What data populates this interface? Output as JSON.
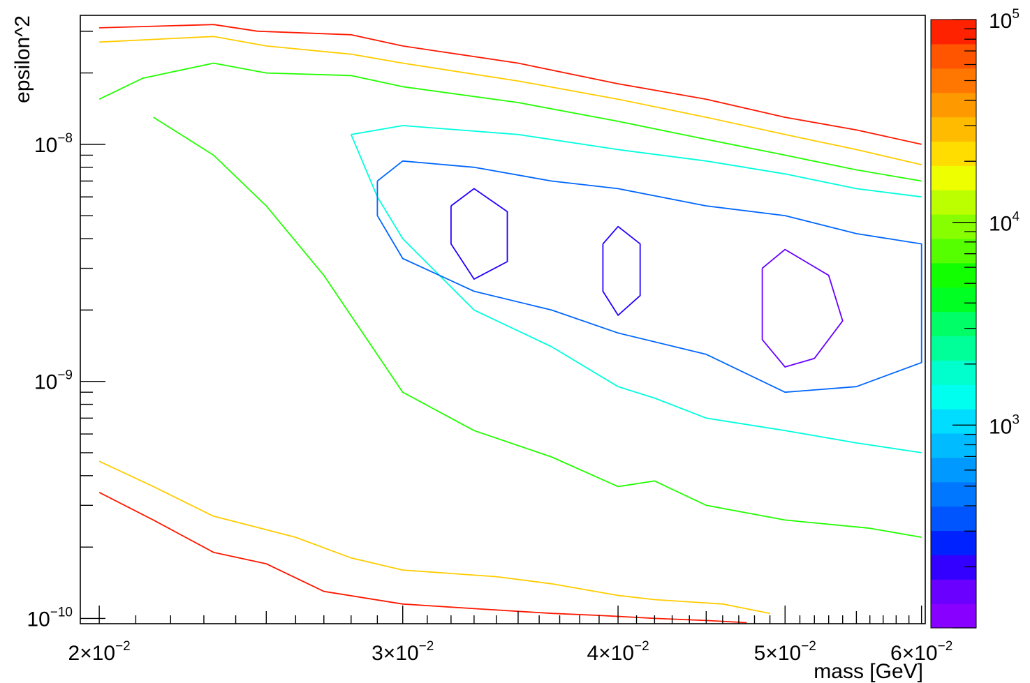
{
  "chart_data": {
    "type": "contour",
    "xlabel": "mass [GeV]",
    "ylabel": "epsilon^2",
    "xscale": "log",
    "yscale": "log",
    "xlim": [
      0.0195,
      0.0603
    ],
    "ylim": [
      9.5e-11,
      3.5e-08
    ],
    "x_ticks": [
      {
        "value": 0.02,
        "mant": "2",
        "exp": "−2"
      },
      {
        "value": 0.03,
        "mant": "3",
        "exp": "−2"
      },
      {
        "value": 0.04,
        "mant": "4",
        "exp": "−2"
      },
      {
        "value": 0.05,
        "mant": "5",
        "exp": "−2"
      },
      {
        "value": 0.06,
        "mant": "6",
        "exp": "−2"
      }
    ],
    "y_ticks": [
      {
        "value": 1e-10,
        "exp": "−10"
      },
      {
        "value": 1e-09,
        "exp": "−9"
      },
      {
        "value": 1e-08,
        "exp": "−8"
      }
    ],
    "colorbar": {
      "scale": "log",
      "range": [
        100,
        100000
      ],
      "ticks": [
        {
          "value": 1000,
          "exp": "3"
        },
        {
          "value": 10000,
          "exp": "4"
        },
        {
          "value": 100000,
          "exp": "5"
        }
      ],
      "colors": [
        "#8800ff",
        "#6a00ff",
        "#3300ff",
        "#0022ff",
        "#0055ff",
        "#0077ff",
        "#0099ff",
        "#00bbff",
        "#00ddff",
        "#00ffee",
        "#00ffcc",
        "#00ff99",
        "#00ff66",
        "#00ff22",
        "#11ff00",
        "#55ff00",
        "#88ff00",
        "#bbff00",
        "#eeff00",
        "#ffdd00",
        "#ffbb00",
        "#ff9900",
        "#ff7700",
        "#ff5500",
        "#ff2200"
      ]
    },
    "annotation": "Nested contour levels of a quantity over (mass, epsilon^2): red outer band near the upper and lower-left edges, falling through orange, yellow, green and cyan to blue/violet islands in the center-right region.",
    "contours": [
      {
        "level": 100000,
        "color": "#ff1800",
        "points": [
          [
            0.02,
            3.1e-08
          ],
          [
            0.0233,
            3.2e-08
          ],
          [
            0.0247,
            3e-08
          ],
          [
            0.028,
            2.9e-08
          ],
          [
            0.03,
            2.6e-08
          ],
          [
            0.035,
            2.2e-08
          ],
          [
            0.04,
            1.8e-08
          ],
          [
            0.045,
            1.55e-08
          ],
          [
            0.05,
            1.3e-08
          ],
          [
            0.055,
            1.15e-08
          ],
          [
            0.06,
            1e-08
          ]
        ]
      },
      {
        "level": 100000,
        "color": "#ff1800",
        "points": [
          [
            0.02,
            3.4e-10
          ],
          [
            0.0215,
            2.6e-10
          ],
          [
            0.0233,
            1.9e-10
          ],
          [
            0.025,
            1.7e-10
          ],
          [
            0.027,
            1.3e-10
          ],
          [
            0.03,
            1.15e-10
          ],
          [
            0.033,
            1.1e-10
          ],
          [
            0.0366,
            1.05e-10
          ],
          [
            0.039,
            1.03e-10
          ],
          [
            0.042,
            1e-10
          ],
          [
            0.045,
            9.8e-11
          ],
          [
            0.0475,
            9.6e-11
          ]
        ]
      },
      {
        "level": 30000,
        "color": "#ffcc00",
        "points": [
          [
            0.02,
            2.7e-08
          ],
          [
            0.0233,
            2.85e-08
          ],
          [
            0.025,
            2.6e-08
          ],
          [
            0.028,
            2.4e-08
          ],
          [
            0.03,
            2.2e-08
          ],
          [
            0.035,
            1.85e-08
          ],
          [
            0.04,
            1.55e-08
          ],
          [
            0.045,
            1.3e-08
          ],
          [
            0.05,
            1.1e-08
          ],
          [
            0.055,
            9.5e-09
          ],
          [
            0.06,
            8.2e-09
          ]
        ]
      },
      {
        "level": 30000,
        "color": "#ffcc00",
        "points": [
          [
            0.02,
            4.6e-10
          ],
          [
            0.0215,
            3.6e-10
          ],
          [
            0.0233,
            2.7e-10
          ],
          [
            0.026,
            2.2e-10
          ],
          [
            0.028,
            1.8e-10
          ],
          [
            0.03,
            1.6e-10
          ],
          [
            0.034,
            1.5e-10
          ],
          [
            0.0366,
            1.4e-10
          ],
          [
            0.04,
            1.25e-10
          ],
          [
            0.042,
            1.2e-10
          ],
          [
            0.046,
            1.15e-10
          ],
          [
            0.049,
            1.05e-10
          ]
        ]
      },
      {
        "level": 10000,
        "color": "#22ff00",
        "points": [
          [
            0.02,
            1.55e-08
          ],
          [
            0.0212,
            1.9e-08
          ],
          [
            0.0233,
            2.2e-08
          ],
          [
            0.025,
            2e-08
          ],
          [
            0.028,
            1.95e-08
          ],
          [
            0.03,
            1.75e-08
          ],
          [
            0.035,
            1.5e-08
          ],
          [
            0.04,
            1.25e-08
          ],
          [
            0.045,
            1.05e-08
          ],
          [
            0.05,
            9e-09
          ],
          [
            0.055,
            7.8e-09
          ],
          [
            0.06,
            7e-09
          ]
        ]
      },
      {
        "level": 10000,
        "color": "#22ff00",
        "points": [
          [
            0.0215,
            1.3e-08
          ],
          [
            0.0233,
            9e-09
          ],
          [
            0.025,
            5.5e-09
          ],
          [
            0.027,
            2.8e-09
          ],
          [
            0.03,
            9e-10
          ],
          [
            0.033,
            6.2e-10
          ],
          [
            0.0366,
            4.8e-10
          ],
          [
            0.04,
            3.6e-10
          ],
          [
            0.042,
            3.8e-10
          ],
          [
            0.045,
            3e-10
          ],
          [
            0.05,
            2.6e-10
          ],
          [
            0.056,
            2.4e-10
          ],
          [
            0.06,
            2.2e-10
          ]
        ]
      },
      {
        "level": 3000,
        "color": "#00ffdd",
        "points": [
          [
            0.028,
            1.1e-08
          ],
          [
            0.03,
            1.2e-08
          ],
          [
            0.035,
            1.1e-08
          ],
          [
            0.04,
            9.5e-09
          ],
          [
            0.045,
            8.5e-09
          ],
          [
            0.05,
            7.5e-09
          ],
          [
            0.055,
            6.5e-09
          ],
          [
            0.06,
            6e-09
          ]
        ]
      },
      {
        "level": 3000,
        "color": "#00ffdd",
        "points": [
          [
            0.028,
            1.1e-08
          ],
          [
            0.029,
            6e-09
          ],
          [
            0.03,
            4e-09
          ],
          [
            0.033,
            2e-09
          ],
          [
            0.0366,
            1.4e-09
          ],
          [
            0.04,
            9.5e-10
          ],
          [
            0.042,
            8.5e-10
          ],
          [
            0.045,
            7e-10
          ],
          [
            0.05,
            6.2e-10
          ],
          [
            0.055,
            5.5e-10
          ],
          [
            0.06,
            5e-10
          ]
        ]
      },
      {
        "level": 1000,
        "color": "#0066ff",
        "points": [
          [
            0.029,
            7e-09
          ],
          [
            0.03,
            8.5e-09
          ],
          [
            0.033,
            8e-09
          ],
          [
            0.0366,
            7e-09
          ],
          [
            0.04,
            6.5e-09
          ],
          [
            0.045,
            5.5e-09
          ],
          [
            0.05,
            5e-09
          ],
          [
            0.055,
            4.2e-09
          ],
          [
            0.06,
            3.8e-09
          ],
          [
            0.06,
            1.2e-09
          ],
          [
            0.055,
            9.5e-10
          ],
          [
            0.05,
            9e-10
          ],
          [
            0.045,
            1.3e-09
          ],
          [
            0.04,
            1.6e-09
          ],
          [
            0.0366,
            2e-09
          ],
          [
            0.033,
            2.4e-09
          ],
          [
            0.03,
            3.3e-09
          ],
          [
            0.029,
            5e-09
          ],
          [
            0.029,
            7e-09
          ]
        ]
      },
      {
        "level": 300,
        "color": "#2200ff",
        "points": [
          [
            0.032,
            5.5e-09
          ],
          [
            0.033,
            6.5e-09
          ],
          [
            0.0345,
            5.2e-09
          ],
          [
            0.0345,
            3.2e-09
          ],
          [
            0.033,
            2.7e-09
          ],
          [
            0.032,
            3.8e-09
          ],
          [
            0.032,
            5.5e-09
          ]
        ]
      },
      {
        "level": 300,
        "color": "#2200ff",
        "points": [
          [
            0.0392,
            3.8e-09
          ],
          [
            0.04,
            4.5e-09
          ],
          [
            0.0412,
            3.8e-09
          ],
          [
            0.0412,
            2.3e-09
          ],
          [
            0.04,
            1.9e-09
          ],
          [
            0.0392,
            2.4e-09
          ],
          [
            0.0392,
            3.8e-09
          ]
        ]
      },
      {
        "level": 200,
        "color": "#6600ff",
        "points": [
          [
            0.0485,
            3e-09
          ],
          [
            0.05,
            3.6e-09
          ],
          [
            0.053,
            2.8e-09
          ],
          [
            0.054,
            1.8e-09
          ],
          [
            0.052,
            1.25e-09
          ],
          [
            0.05,
            1.15e-09
          ],
          [
            0.0485,
            1.5e-09
          ],
          [
            0.0485,
            3e-09
          ]
        ]
      }
    ]
  }
}
